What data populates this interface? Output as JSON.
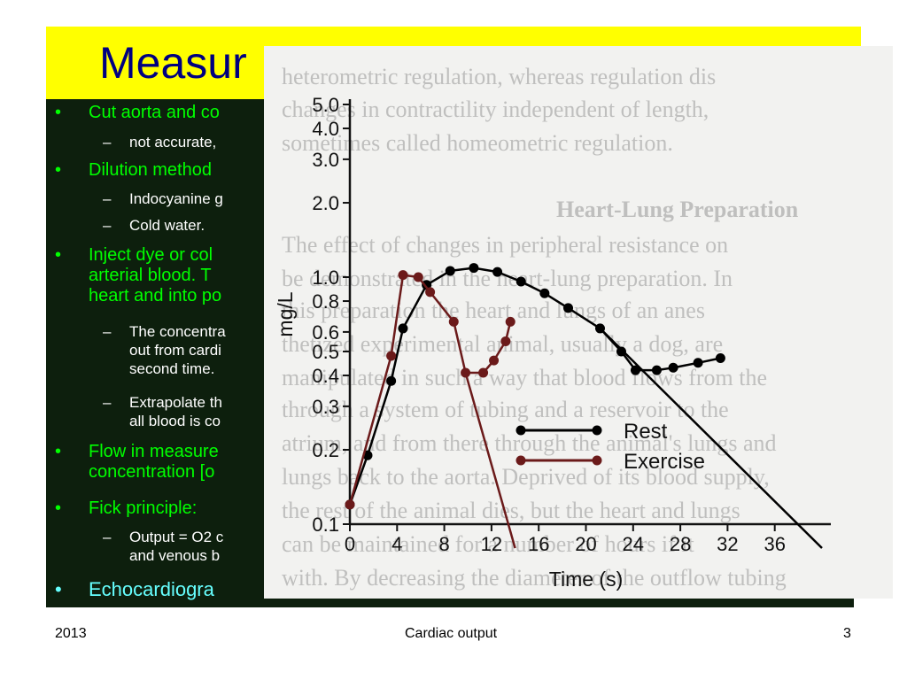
{
  "slide": {
    "title": "Measur",
    "bullets": [
      {
        "text": "Cut aorta and co",
        "color": "#00ff00",
        "subs": [
          "not accurate,"
        ]
      },
      {
        "text": "Dilution method",
        "color": "#00ff00",
        "subs": [
          "Indocyanine g",
          "Cold water."
        ]
      },
      {
        "lines": [
          "Inject dye or col",
          "arterial blood.  T",
          "heart and into po"
        ],
        "color": "#00ff00",
        "subs": [
          [
            "The concentra",
            "out from cardi",
            "second time."
          ],
          [
            "Extrapolate th",
            "all blood is co"
          ]
        ]
      },
      {
        "lines": [
          "Flow in measure",
          "concentration [o"
        ],
        "color": "#00ff00"
      },
      {
        "text": "Fick principle:",
        "color": "#00ff00",
        "subs": [
          [
            "Output = O2 c",
            "and venous b"
          ]
        ]
      },
      {
        "text": "Echocardiogra",
        "color": "#66ffff"
      }
    ]
  },
  "figure_background_text": [
    "heterometric regulation, whereas regulation dis",
    "changes in contractility independent of length,",
    "sometimes called homeometric regulation.",
    "Heart-Lung Preparation",
    "The effect of changes in peripheral resistance on",
    "be demonstrated in the heart-lung preparation. In",
    "this preparation the heart and lungs of an anes",
    "thetized experimental animal, usually a dog, are",
    "manipulated in such a way that blood flows from the",
    "through a system of tubing and a reservoir to the",
    "atrium, and from there through the animal's lungs and",
    "lungs back to the aorta. Deprived of its blood supply,",
    "the rest of the animal dies, but the heart and lungs",
    "can be maintained for a number of hours if it",
    "with. By decreasing the diameter of the outflow tubing"
  ],
  "chart_data": {
    "type": "line",
    "xlabel": "Time (s)",
    "ylabel": "mg/L",
    "y_scale": "log",
    "xlim": [
      0,
      40
    ],
    "ylim": [
      0.1,
      5.0
    ],
    "x_ticks": [
      "0",
      "4",
      "8",
      "12",
      "16",
      "20",
      "24",
      "28",
      "32",
      "36"
    ],
    "y_ticks": [
      "0.1",
      "0.2",
      "0.3",
      "0.4",
      "0.5",
      "0.6",
      "0.8",
      "1.0",
      "2.0",
      "3.0",
      "4.0",
      "5.0"
    ],
    "legend": "bottom-right",
    "series": [
      {
        "name": "Rest",
        "color": "#000000",
        "x": [
          0,
          1.5,
          3.5,
          4.5,
          6.5,
          8.5,
          10.5,
          12.5,
          14.5,
          16.5,
          18.5,
          21.2,
          23,
          24.2,
          26,
          27.4,
          29.5,
          31.4
        ],
        "y": [
          0.12,
          0.19,
          0.38,
          0.62,
          0.93,
          1.06,
          1.09,
          1.05,
          0.96,
          0.86,
          0.75,
          0.62,
          0.5,
          0.42,
          0.42,
          0.43,
          0.45,
          0.47
        ],
        "extrapolation": {
          "x": [
            21.2,
            40
          ],
          "y": [
            0.62,
            0.08
          ]
        }
      },
      {
        "name": "Exercise",
        "color": "#6b1a1a",
        "x": [
          0,
          3.5,
          4.5,
          5.8,
          6.8,
          8.8,
          9.8,
          11.3,
          12.2,
          13.2,
          13.6
        ],
        "y": [
          0.12,
          0.48,
          1.02,
          1.0,
          0.87,
          0.66,
          0.41,
          0.41,
          0.46,
          0.55,
          0.66
        ],
        "extrapolation": {
          "x": [
            9.8,
            14
          ],
          "y": [
            0.41,
            0.08
          ]
        }
      }
    ]
  },
  "footer": {
    "left": "2013",
    "center": "Cardiac output",
    "right": "3"
  }
}
